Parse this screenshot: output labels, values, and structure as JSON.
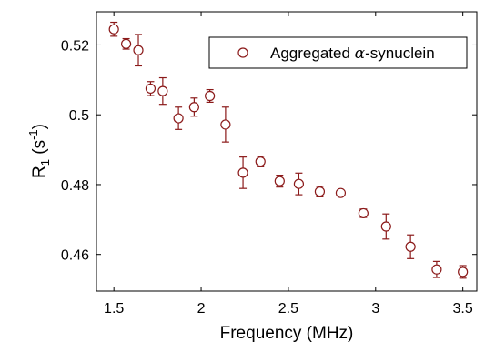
{
  "chart_data": {
    "type": "scatter",
    "title": "",
    "xlabel": "Frequency (MHz)",
    "ylabel": {
      "main": "R",
      "sub": "1",
      "unit_open": " (s",
      "sup": "-1",
      "unit_close": ")"
    },
    "xlim": [
      1.4,
      3.58
    ],
    "ylim": [
      0.4495,
      0.5295
    ],
    "xticks": [
      1.5,
      2,
      2.5,
      3,
      3.5
    ],
    "xtick_labels": [
      "1.5",
      "2",
      "2.5",
      "3",
      "3.5"
    ],
    "yticks": [
      0.46,
      0.48,
      0.5,
      0.52
    ],
    "ytick_labels": [
      "0.46",
      "0.48",
      "0.5",
      "0.52"
    ],
    "grid": false,
    "legend_position": "top-right",
    "marker_color": "#8b1a1a",
    "series": [
      {
        "name_prefix": "Aggregated ",
        "name_symbol": "α",
        "name_suffix": "-synuclein",
        "marker": "open-circle",
        "x": [
          1.5,
          1.57,
          1.64,
          1.71,
          1.78,
          1.87,
          1.96,
          2.05,
          2.14,
          2.24,
          2.34,
          2.45,
          2.56,
          2.68,
          2.8,
          2.93,
          3.06,
          3.2,
          3.35,
          3.5
        ],
        "y": [
          0.5245,
          0.5203,
          0.5185,
          0.5075,
          0.5068,
          0.499,
          0.5022,
          0.5054,
          0.4972,
          0.4834,
          0.4866,
          0.481,
          0.4802,
          0.478,
          0.4776,
          0.4718,
          0.468,
          0.4622,
          0.4557,
          0.455
        ],
        "yerr": [
          0.002,
          0.0015,
          0.0045,
          0.002,
          0.0038,
          0.0032,
          0.0026,
          0.0018,
          0.005,
          0.0045,
          0.0015,
          0.0017,
          0.0031,
          0.0015,
          0.0008,
          0.0012,
          0.0036,
          0.0034,
          0.0023,
          0.0018
        ]
      }
    ]
  }
}
